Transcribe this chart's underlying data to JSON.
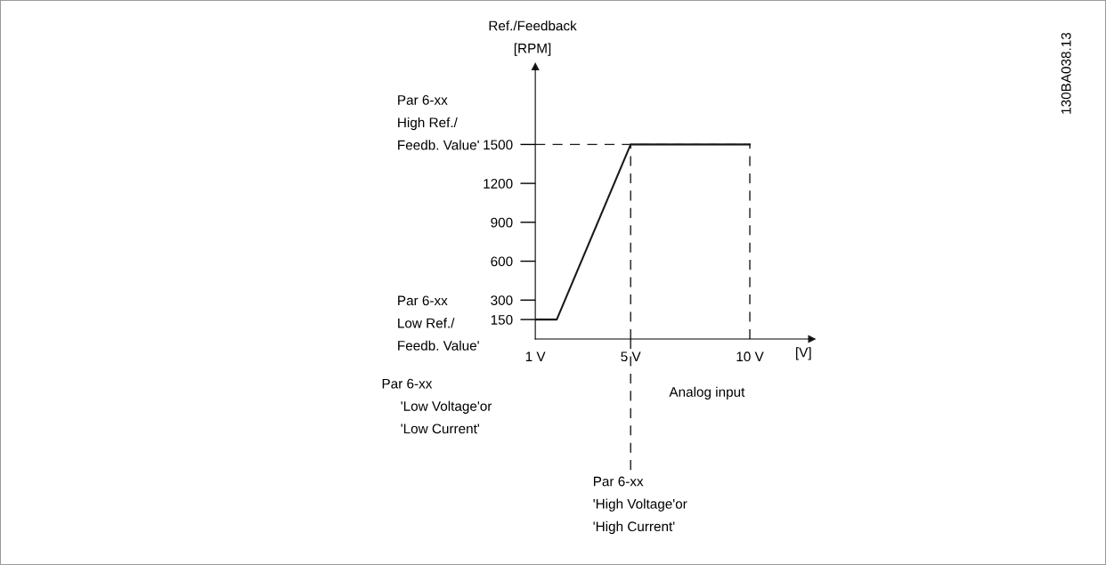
{
  "chart_data": {
    "type": "line",
    "x": [
      1,
      1.9,
      5,
      10
    ],
    "series": [
      {
        "color": "#1a1a1a",
        "values": [
          150,
          150,
          1500,
          1500
        ]
      }
    ],
    "xlim": [
      1,
      12.6
    ],
    "ylim": [
      0,
      2100
    ],
    "xticks": [
      {
        "value": 1,
        "label": "1 V"
      },
      {
        "value": 5,
        "label": "5 V"
      },
      {
        "value": 10,
        "label": "10 V"
      }
    ],
    "yticks": [
      150,
      300,
      600,
      900,
      1200,
      1500
    ],
    "xlabel": "[V]",
    "ylabel": "Ref./Feedback\n[RPM]",
    "ref_lines": [
      {
        "axis": "y",
        "value": 1500,
        "color": "#1a1a1a",
        "line_style": "dashed"
      },
      {
        "axis": "x",
        "value": 5,
        "color": "#1a1a1a",
        "line_style": "dashed"
      },
      {
        "axis": "x",
        "value": 10,
        "color": "#1a1a1a",
        "line_style": "dashed"
      }
    ],
    "annotations": [
      "Par 6-xx\nHigh Ref./\nFeedb. Value'",
      "Par 6-xx\nLow Ref./\nFeedb. Value'",
      "Par 6-xx\n     'Low Voltage'or\n     'Low Current'",
      "Par 6-xx\n'High Voltage'or\n'High Current'",
      "Analog input",
      "130BA038.13"
    ],
    "grid": false,
    "marker": "none",
    "line_style": "solid"
  }
}
